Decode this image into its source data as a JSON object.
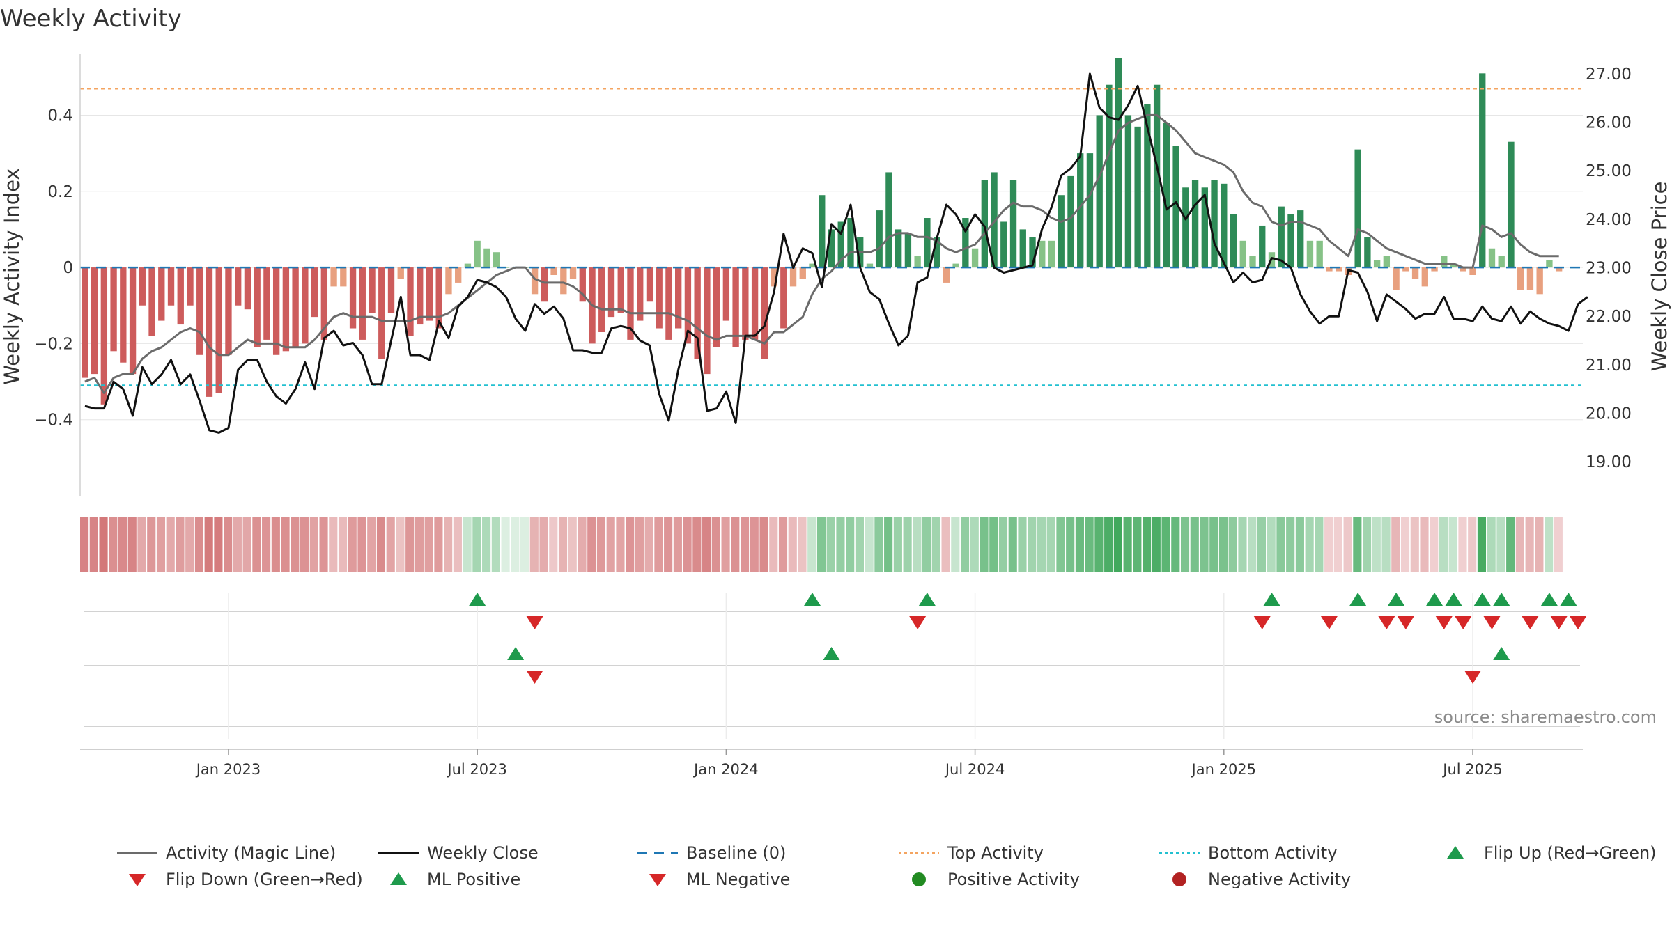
{
  "chart_data": {
    "type": "bar",
    "title": "Weekly Activity",
    "ylabel": "Weekly Activity Index",
    "y2label": "Weekly Close Price",
    "ylim": [
      -0.6,
      0.56
    ],
    "y2lim": [
      18.3,
      27.4
    ],
    "yticks": [
      {
        "v": 0.4,
        "label": "0.4"
      },
      {
        "v": 0.2,
        "label": "0.2"
      },
      {
        "v": 0,
        "label": "0"
      },
      {
        "v": -0.2,
        "label": "−0.2"
      },
      {
        "v": -0.4,
        "label": "−0.4"
      }
    ],
    "y2ticks": [
      {
        "v": 27,
        "label": "27.00"
      },
      {
        "v": 26,
        "label": "26.00"
      },
      {
        "v": 25,
        "label": "25.00"
      },
      {
        "v": 24,
        "label": "24.00"
      },
      {
        "v": 23,
        "label": "23.00"
      },
      {
        "v": 22,
        "label": "22.00"
      },
      {
        "v": 21,
        "label": "21.00"
      },
      {
        "v": 20,
        "label": "20.00"
      },
      {
        "v": 19,
        "label": "19.00"
      }
    ],
    "xticks": [
      {
        "week": 15,
        "label": "Jan 2023"
      },
      {
        "week": 41,
        "label": "Jul 2023"
      },
      {
        "week": 67,
        "label": "Jan 2024"
      },
      {
        "week": 93,
        "label": "Jul 2024"
      },
      {
        "week": 119,
        "label": "Jan 2025"
      },
      {
        "week": 145,
        "label": "Jul 2025"
      }
    ],
    "week_count": 157,
    "activity": [
      -0.29,
      -0.28,
      -0.36,
      -0.22,
      -0.25,
      -0.28,
      -0.1,
      -0.18,
      -0.14,
      -0.1,
      -0.15,
      -0.1,
      -0.23,
      -0.34,
      -0.33,
      -0.23,
      -0.1,
      -0.11,
      -0.21,
      -0.19,
      -0.23,
      -0.22,
      -0.21,
      -0.2,
      -0.13,
      -0.19,
      -0.05,
      -0.05,
      -0.16,
      -0.19,
      -0.12,
      -0.24,
      -0.12,
      -0.03,
      -0.18,
      -0.15,
      -0.14,
      -0.16,
      -0.07,
      -0.04,
      0.01,
      0.07,
      0.05,
      0.04,
      0,
      0,
      0,
      -0.07,
      -0.09,
      -0.02,
      -0.07,
      -0.03,
      -0.09,
      -0.2,
      -0.17,
      -0.13,
      -0.12,
      -0.19,
      -0.14,
      -0.09,
      -0.16,
      -0.19,
      -0.16,
      -0.2,
      -0.24,
      -0.28,
      -0.21,
      -0.14,
      -0.21,
      -0.19,
      -0.19,
      -0.24,
      -0.05,
      -0.16,
      -0.05,
      -0.03,
      0.01,
      0.19,
      0.1,
      0.12,
      0.13,
      0.08,
      0.01,
      0.15,
      0.25,
      0.1,
      0.09,
      0.03,
      0.13,
      0.08,
      -0.04,
      0.01,
      0.13,
      0.05,
      0.23,
      0.25,
      0.12,
      0.23,
      0.1,
      0.08,
      0.07,
      0.07,
      0.19,
      0.24,
      0.3,
      0.3,
      0.4,
      0.48,
      0.55,
      0.4,
      0.37,
      0.43,
      0.48,
      0.38,
      0.32,
      0.21,
      0.23,
      0.21,
      0.23,
      0.22,
      0.14,
      0.07,
      0.03,
      0.11,
      0.04,
      0.16,
      0.14,
      0.15,
      0.07,
      0.07,
      -0.01,
      -0.01,
      -0.02,
      0.31,
      0.08,
      0.02,
      0.03,
      -0.06,
      -0.01,
      -0.03,
      -0.05,
      -0.01,
      0.03,
      0.01,
      -0.01,
      -0.02,
      0.51,
      0.05,
      0.03,
      0.33,
      -0.06,
      -0.06,
      -0.07,
      0.02,
      -0.01
    ],
    "magic_line": [
      -0.3,
      -0.29,
      -0.33,
      -0.29,
      -0.28,
      -0.28,
      -0.24,
      -0.22,
      -0.21,
      -0.19,
      -0.17,
      -0.16,
      -0.17,
      -0.21,
      -0.23,
      -0.23,
      -0.21,
      -0.19,
      -0.2,
      -0.2,
      -0.2,
      -0.21,
      -0.21,
      -0.21,
      -0.19,
      -0.16,
      -0.13,
      -0.12,
      -0.13,
      -0.13,
      -0.13,
      -0.14,
      -0.14,
      -0.14,
      -0.14,
      -0.13,
      -0.13,
      -0.13,
      -0.12,
      -0.1,
      -0.08,
      -0.06,
      -0.04,
      -0.02,
      -0.01,
      0,
      0,
      -0.03,
      -0.04,
      -0.04,
      -0.04,
      -0.05,
      -0.07,
      -0.1,
      -0.11,
      -0.11,
      -0.11,
      -0.12,
      -0.12,
      -0.12,
      -0.12,
      -0.12,
      -0.13,
      -0.14,
      -0.16,
      -0.18,
      -0.19,
      -0.18,
      -0.18,
      -0.18,
      -0.19,
      -0.2,
      -0.17,
      -0.17,
      -0.15,
      -0.13,
      -0.07,
      -0.03,
      -0.01,
      0.02,
      0.04,
      0.04,
      0.04,
      0.05,
      0.08,
      0.09,
      0.09,
      0.08,
      0.08,
      0.07,
      0.05,
      0.04,
      0.05,
      0.06,
      0.09,
      0.12,
      0.15,
      0.17,
      0.16,
      0.16,
      0.15,
      0.13,
      0.12,
      0.13,
      0.16,
      0.19,
      0.24,
      0.3,
      0.36,
      0.38,
      0.39,
      0.4,
      0.4,
      0.38,
      0.36,
      0.33,
      0.3,
      0.29,
      0.28,
      0.27,
      0.25,
      0.2,
      0.17,
      0.16,
      0.12,
      0.11,
      0.12,
      0.12,
      0.11,
      0.1,
      0.07,
      0.05,
      0.03,
      0.1,
      0.09,
      0.07,
      0.05,
      0.04,
      0.03,
      0.02,
      0.01,
      0.01,
      0.01,
      0.01,
      0,
      0,
      0.11,
      0.1,
      0.08,
      0.09,
      0.06,
      0.04,
      0.03,
      0.03,
      0.03
    ],
    "close": [
      20.15,
      20.1,
      20.1,
      20.65,
      20.5,
      19.95,
      20.95,
      20.6,
      20.8,
      21.1,
      20.6,
      20.8,
      20.25,
      19.65,
      19.6,
      19.7,
      20.9,
      21.1,
      21.1,
      20.65,
      20.35,
      20.2,
      20.5,
      21.05,
      20.5,
      21.55,
      21.7,
      21.4,
      21.45,
      21.2,
      20.6,
      20.6,
      21.5,
      22.4,
      21.2,
      21.2,
      21.1,
      21.9,
      21.55,
      22.2,
      22.4,
      22.75,
      22.7,
      22.6,
      22.4,
      21.95,
      21.7,
      22.25,
      22.05,
      22.2,
      21.95,
      21.3,
      21.3,
      21.25,
      21.25,
      21.75,
      21.8,
      21.75,
      21.5,
      21.4,
      20.4,
      19.85,
      20.9,
      21.7,
      21.55,
      20.05,
      20.1,
      20.45,
      19.8,
      21.6,
      21.6,
      21.8,
      22.5,
      23.7,
      23.0,
      23.4,
      23.3,
      22.6,
      23.9,
      23.7,
      24.3,
      23.0,
      22.5,
      22.35,
      21.85,
      21.4,
      21.6,
      22.7,
      22.8,
      23.6,
      24.3,
      24.1,
      23.75,
      24.1,
      23.85,
      23.0,
      22.9,
      22.95,
      23.0,
      23.05,
      23.8,
      24.25,
      24.9,
      25.05,
      25.3,
      27.0,
      26.3,
      26.1,
      26.05,
      26.35,
      26.75,
      25.9,
      25.1,
      24.2,
      24.35,
      24.0,
      24.3,
      24.5,
      23.5,
      23.1,
      22.7,
      22.9,
      22.7,
      22.75,
      23.2,
      23.15,
      23.0,
      22.45,
      22.1,
      21.85,
      22.0,
      22.0,
      22.95,
      22.9,
      22.5,
      21.9,
      22.45,
      22.3,
      22.15,
      21.95,
      22.05,
      22.05,
      22.4,
      21.95,
      21.95,
      21.9,
      22.2,
      21.95,
      21.9,
      22.2,
      21.85,
      22.1,
      21.95,
      21.85,
      21.8,
      21.7,
      22.25,
      22.4
    ],
    "top_activity": 0.47,
    "bottom_activity": -0.31,
    "baseline": 0,
    "flip_up_weeks": [
      41,
      76,
      88,
      124,
      133,
      137,
      141,
      143,
      146,
      148,
      153,
      155
    ],
    "flip_down_weeks": [
      47,
      87,
      123,
      130,
      136,
      138,
      142,
      144,
      147,
      151,
      154,
      156
    ],
    "ml_positive_weeks": [
      45,
      78,
      148
    ],
    "ml_negative_weeks": [
      47,
      145
    ],
    "colors": {
      "strong_pos": "#2e8b57",
      "weak_pos": "#86c287",
      "strong_neg": "#cd5c5c",
      "weak_neg": "#e8a07f",
      "magic_line": "#6b6b6b",
      "close": "#111111",
      "baseline": "#1f77b4",
      "top": "#f4a460",
      "bottom": "#22c0d0",
      "up_marker": "#1e9a4c",
      "down_marker": "#d62728",
      "pos_dot": "#228b22",
      "neg_dot": "#b22222",
      "grid": "#e6e6e6"
    },
    "legend": [
      {
        "label": "Activity (Magic Line)",
        "kind": "line",
        "color": "#6b6b6b"
      },
      {
        "label": "Weekly Close",
        "kind": "line",
        "color": "#111111"
      },
      {
        "label": "Baseline (0)",
        "kind": "dash",
        "color": "#1f77b4"
      },
      {
        "label": "Top Activity",
        "kind": "dot-line",
        "color": "#f4a460"
      },
      {
        "label": "Bottom Activity",
        "kind": "dot-line",
        "color": "#22c0d0"
      },
      {
        "label": "Flip Up (Red→Green)",
        "kind": "tri-up",
        "color": "#1e9a4c"
      },
      {
        "label": "Flip Down (Green→Red)",
        "kind": "tri-down",
        "color": "#d62728"
      },
      {
        "label": "ML Positive",
        "kind": "tri-up",
        "color": "#1e9a4c"
      },
      {
        "label": "ML Negative",
        "kind": "tri-down",
        "color": "#d62728"
      },
      {
        "label": "Positive Activity",
        "kind": "circle",
        "color": "#228b22"
      },
      {
        "label": "Negative Activity",
        "kind": "circle",
        "color": "#b22222"
      }
    ],
    "source": "source: sharemaestro.com"
  }
}
